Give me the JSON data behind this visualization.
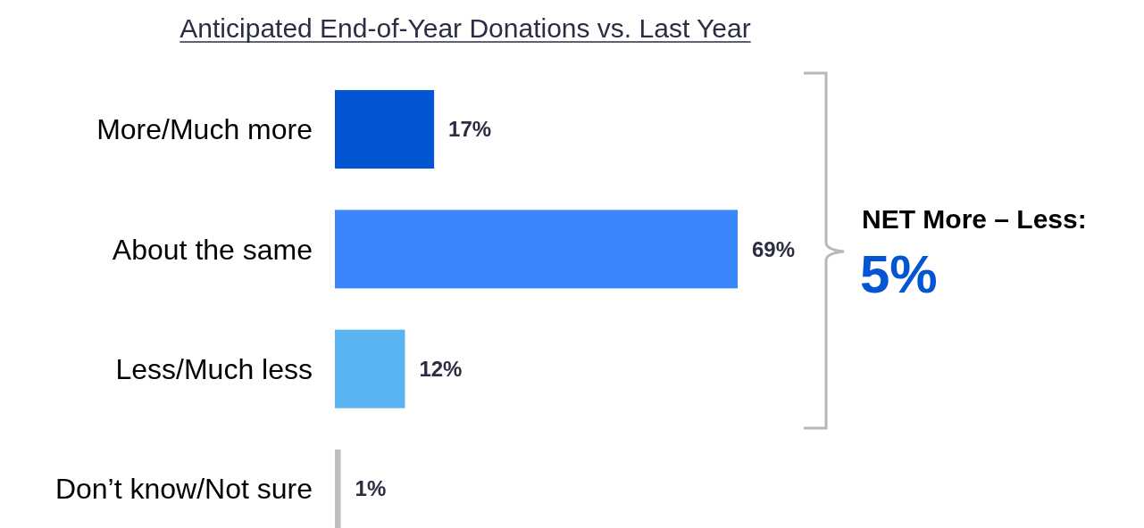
{
  "chart_data": {
    "type": "bar",
    "orientation": "horizontal",
    "title": "Anticipated End-of-Year Donations vs. Last Year",
    "categories": [
      "More/Much more",
      "About the same",
      "Less/Much less",
      "Don’t know/Not sure"
    ],
    "values": [
      17,
      69,
      12,
      1
    ],
    "colors": [
      "#0455d4",
      "#3b86fc",
      "#5ab4f2",
      "#bfbfbf"
    ],
    "value_labels": [
      "17%",
      "69%",
      "12%",
      "1%"
    ],
    "annotations": [
      "NET More – Less:",
      "5%"
    ]
  }
}
